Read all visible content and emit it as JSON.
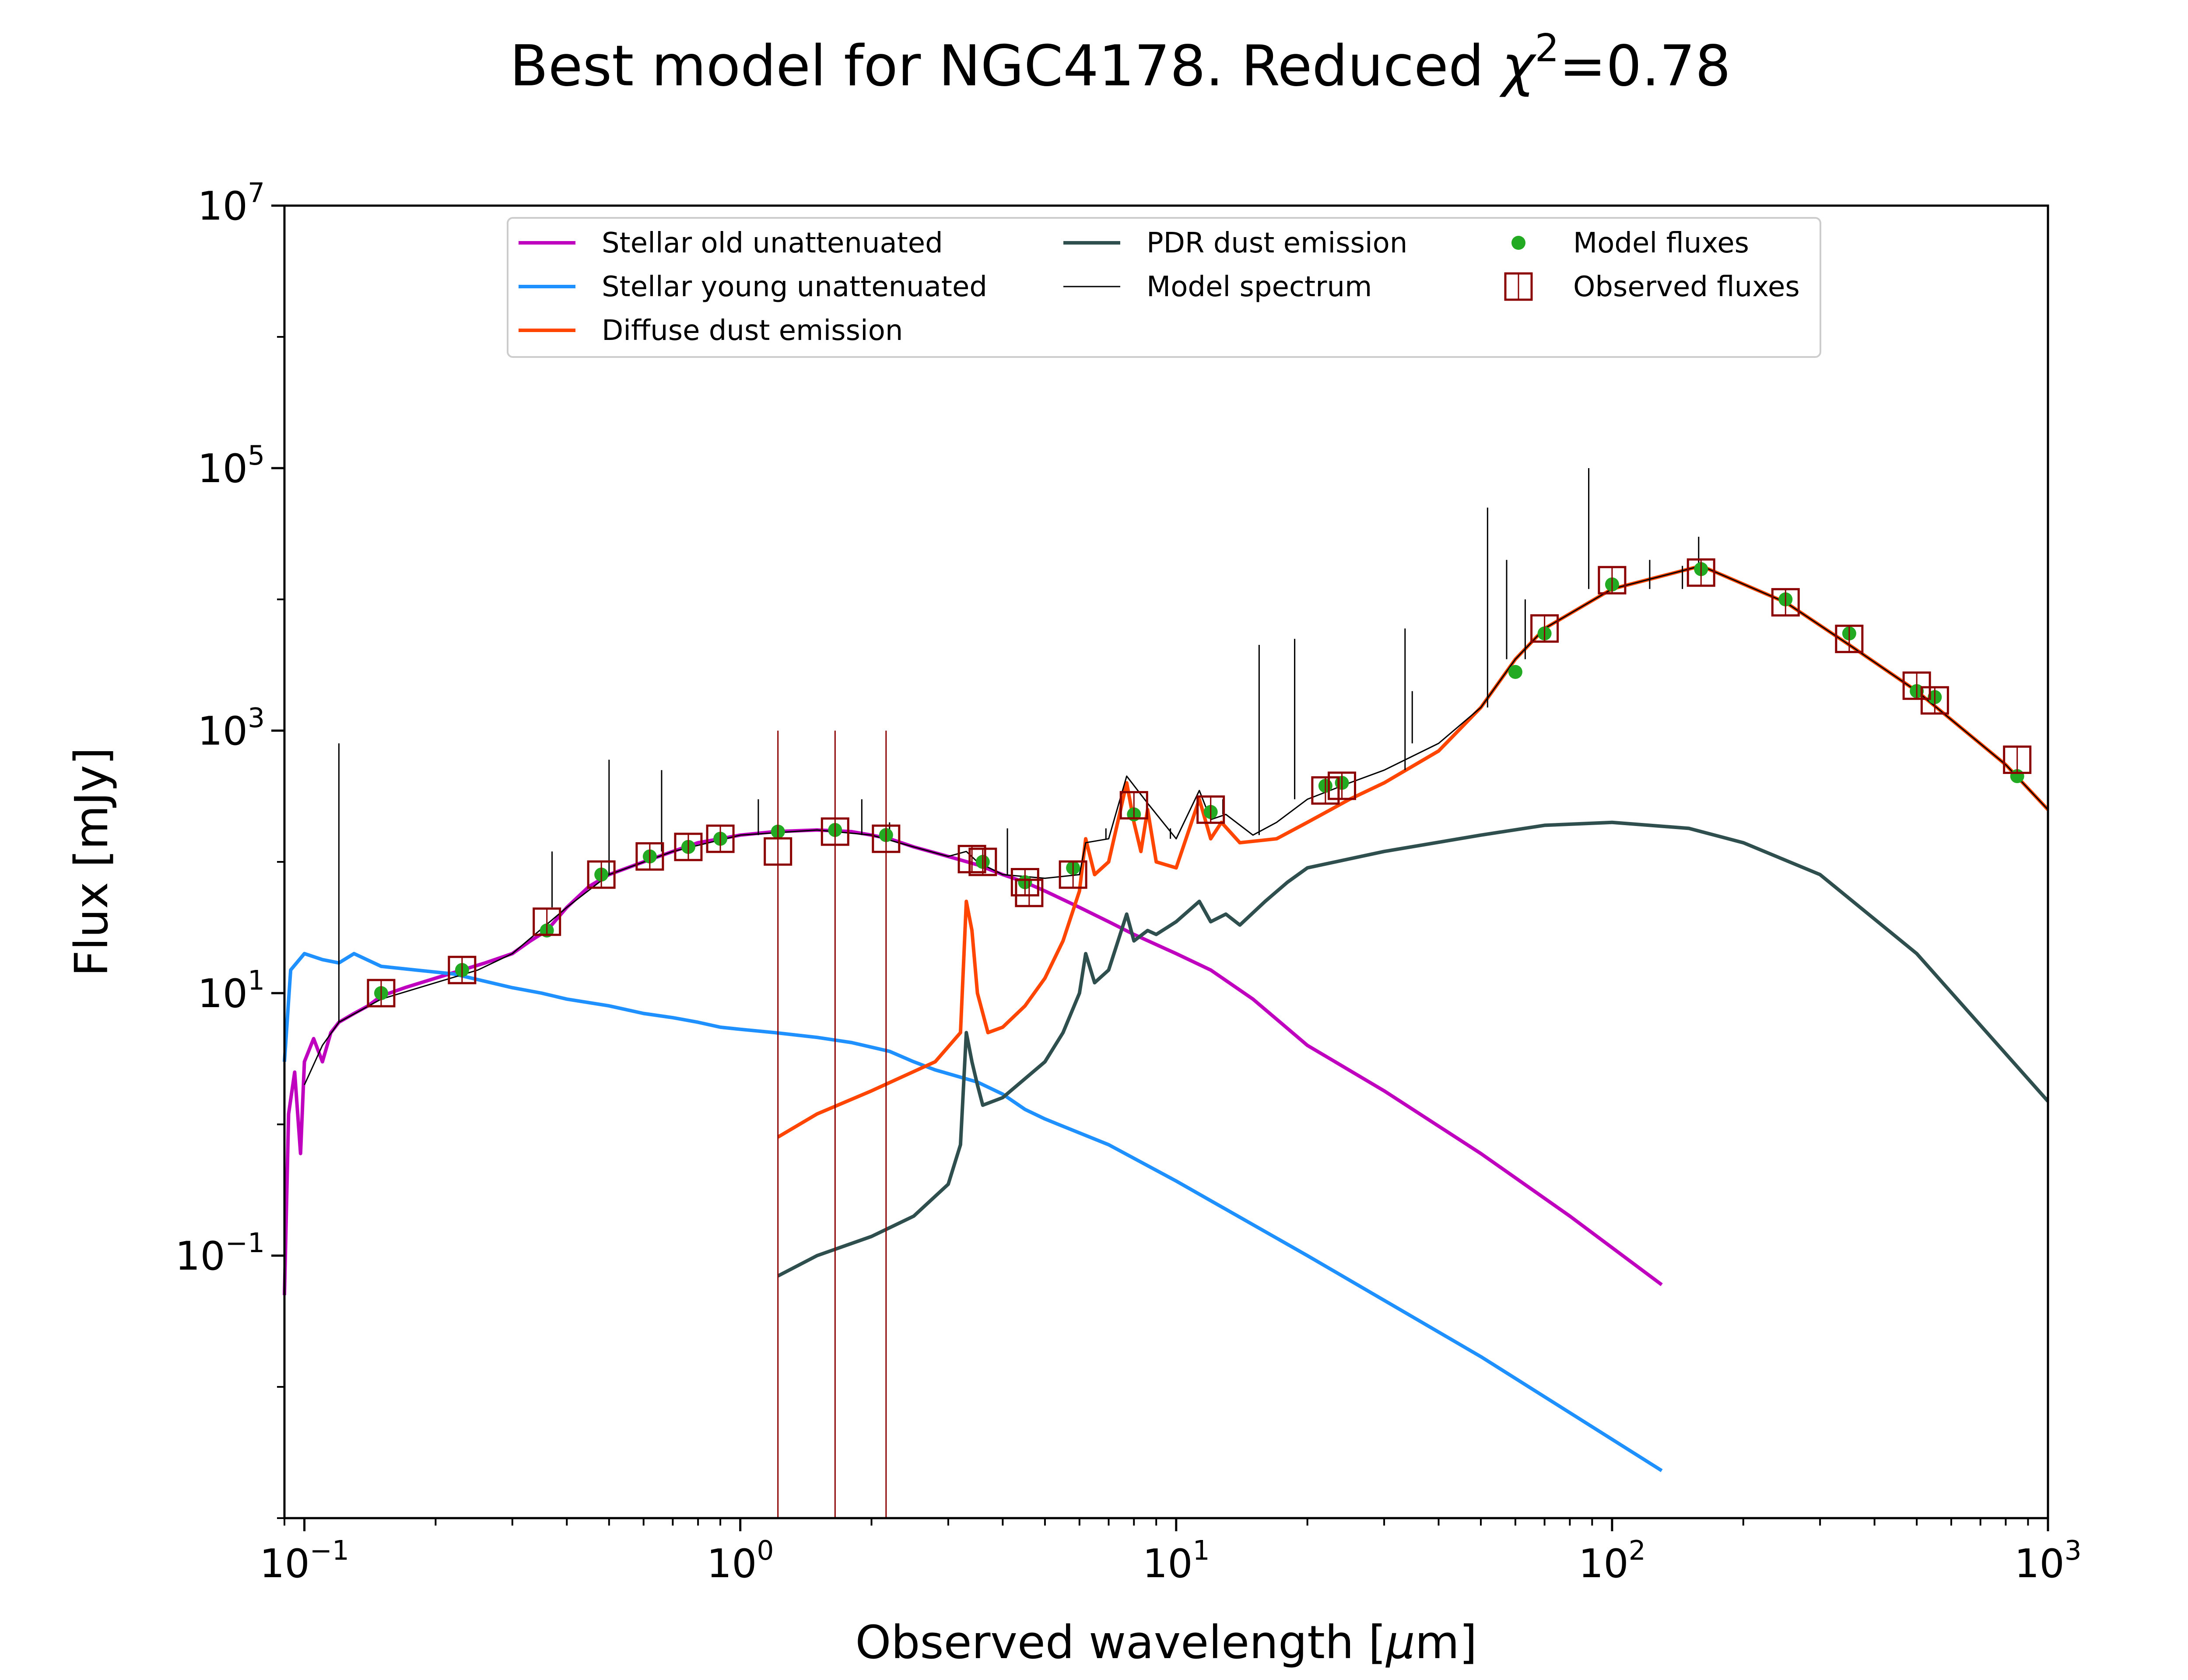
{
  "chart_data": {
    "type": "line",
    "title": {
      "pre": "Best model for NGC4178. Reduced ",
      "chi": "χ",
      "sup": "2",
      "post": "=0.78"
    },
    "xlabel": {
      "pre": "Observed wavelength [",
      "mu": "μ",
      "post": "m]"
    },
    "ylabel": "Flux [mJy]",
    "xscale": "log",
    "yscale": "log",
    "xlim": [
      0.09,
      1000
    ],
    "ylim": [
      0.001,
      10000000
    ],
    "grid": false,
    "legend_position": "top-center",
    "x_ticks": [
      {
        "base": "10",
        "exp": "−1",
        "value": 0.1
      },
      {
        "base": "10",
        "exp": "0",
        "value": 1
      },
      {
        "base": "10",
        "exp": "1",
        "value": 10
      },
      {
        "base": "10",
        "exp": "2",
        "value": 100
      },
      {
        "base": "10",
        "exp": "3",
        "value": 1000
      }
    ],
    "y_ticks": [
      {
        "base": "10",
        "exp": "−1",
        "value": 0.1
      },
      {
        "base": "10",
        "exp": "1",
        "value": 10
      },
      {
        "base": "10",
        "exp": "3",
        "value": 1000
      },
      {
        "base": "10",
        "exp": "5",
        "value": 100000
      },
      {
        "base": "10",
        "exp": "7",
        "value": 10000000
      }
    ],
    "y_minor_ticks": [
      0.001,
      0.01,
      1,
      100,
      10000,
      1000000
    ],
    "series": [
      {
        "name": "Stellar old unattenuated",
        "color": "#bf00bf",
        "kind": "line",
        "points": [
          [
            0.09,
            0.05
          ],
          [
            0.092,
            1.2
          ],
          [
            0.095,
            2.5
          ],
          [
            0.098,
            0.6
          ],
          [
            0.1,
            3
          ],
          [
            0.105,
            4.5
          ],
          [
            0.11,
            3
          ],
          [
            0.115,
            5
          ],
          [
            0.12,
            6
          ],
          [
            0.13,
            7
          ],
          [
            0.14,
            8
          ],
          [
            0.15,
            9.5
          ],
          [
            0.17,
            11
          ],
          [
            0.2,
            13
          ],
          [
            0.23,
            15
          ],
          [
            0.26,
            17
          ],
          [
            0.3,
            20
          ],
          [
            0.33,
            25
          ],
          [
            0.36,
            30
          ],
          [
            0.4,
            45
          ],
          [
            0.45,
            65
          ],
          [
            0.5,
            80
          ],
          [
            0.6,
            100
          ],
          [
            0.7,
            120
          ],
          [
            0.8,
            140
          ],
          [
            0.9,
            150
          ],
          [
            1.0,
            160
          ],
          [
            1.2,
            170
          ],
          [
            1.5,
            175
          ],
          [
            1.8,
            170
          ],
          [
            2.0,
            160
          ],
          [
            2.2,
            150
          ],
          [
            2.5,
            130
          ],
          [
            3.0,
            110
          ],
          [
            3.5,
            95
          ],
          [
            4.0,
            80
          ],
          [
            4.5,
            70
          ],
          [
            5.0,
            60
          ],
          [
            6.0,
            45
          ],
          [
            7.0,
            35
          ],
          [
            8.0,
            28
          ],
          [
            10.0,
            20
          ],
          [
            12.0,
            15
          ],
          [
            15.0,
            9
          ],
          [
            20.0,
            4
          ],
          [
            30.0,
            1.8
          ],
          [
            50.0,
            0.6
          ],
          [
            80.0,
            0.2
          ],
          [
            130.0,
            0.06
          ]
        ]
      },
      {
        "name": "Stellar young unattenuated",
        "color": "#1e90ff",
        "kind": "line",
        "points": [
          [
            0.09,
            3
          ],
          [
            0.093,
            15
          ],
          [
            0.1,
            20
          ],
          [
            0.11,
            18
          ],
          [
            0.12,
            17
          ],
          [
            0.13,
            20
          ],
          [
            0.15,
            16
          ],
          [
            0.18,
            15
          ],
          [
            0.22,
            14
          ],
          [
            0.3,
            11
          ],
          [
            0.35,
            10
          ],
          [
            0.4,
            9
          ],
          [
            0.5,
            8
          ],
          [
            0.6,
            7
          ],
          [
            0.7,
            6.5
          ],
          [
            0.8,
            6
          ],
          [
            0.9,
            5.5
          ],
          [
            1.0,
            5.3
          ],
          [
            1.2,
            5
          ],
          [
            1.5,
            4.6
          ],
          [
            1.8,
            4.2
          ],
          [
            2.2,
            3.6
          ],
          [
            2.5,
            3
          ],
          [
            2.8,
            2.6
          ],
          [
            3.5,
            2.1
          ],
          [
            4.0,
            1.7
          ],
          [
            4.5,
            1.3
          ],
          [
            5.0,
            1.1
          ],
          [
            7.0,
            0.7
          ],
          [
            10.0,
            0.37
          ],
          [
            20.0,
            0.1
          ],
          [
            50.0,
            0.017
          ],
          [
            130.0,
            0.0023
          ]
        ]
      },
      {
        "name": "Diffuse dust emission",
        "color": "#ff4500",
        "kind": "line",
        "points": [
          [
            1.22,
            0.8
          ],
          [
            1.5,
            1.2
          ],
          [
            2.0,
            1.8
          ],
          [
            2.8,
            3
          ],
          [
            3.2,
            5
          ],
          [
            3.3,
            50
          ],
          [
            3.4,
            30
          ],
          [
            3.5,
            10
          ],
          [
            3.7,
            5
          ],
          [
            4.0,
            5.5
          ],
          [
            4.5,
            8
          ],
          [
            5.0,
            13
          ],
          [
            5.5,
            25
          ],
          [
            6.0,
            60
          ],
          [
            6.2,
            150
          ],
          [
            6.5,
            80
          ],
          [
            7.0,
            100
          ],
          [
            7.7,
            400
          ],
          [
            8.0,
            200
          ],
          [
            8.3,
            120
          ],
          [
            8.6,
            250
          ],
          [
            9.0,
            100
          ],
          [
            10.0,
            90
          ],
          [
            11.3,
            300
          ],
          [
            12.0,
            150
          ],
          [
            12.7,
            200
          ],
          [
            14.0,
            140
          ],
          [
            17.0,
            150
          ],
          [
            20.0,
            200
          ],
          [
            25.0,
            300
          ],
          [
            30.0,
            400
          ],
          [
            40.0,
            700
          ],
          [
            50.0,
            1500
          ],
          [
            60.0,
            3500
          ],
          [
            70.0,
            6000
          ],
          [
            100.0,
            12000
          ],
          [
            160.0,
            18000
          ],
          [
            250.0,
            9500
          ],
          [
            350.0,
            4500
          ],
          [
            500.0,
            2000
          ],
          [
            800.0,
            550
          ],
          [
            1000.0,
            250
          ]
        ]
      },
      {
        "name": "PDR dust emission",
        "color": "#2f4f4f",
        "kind": "line",
        "points": [
          [
            1.22,
            0.07
          ],
          [
            1.5,
            0.1
          ],
          [
            2.0,
            0.14
          ],
          [
            2.5,
            0.2
          ],
          [
            3.0,
            0.35
          ],
          [
            3.2,
            0.7
          ],
          [
            3.3,
            5
          ],
          [
            3.4,
            3
          ],
          [
            3.5,
            2
          ],
          [
            3.6,
            1.4
          ],
          [
            4.0,
            1.6
          ],
          [
            5.0,
            3
          ],
          [
            5.5,
            5
          ],
          [
            6.0,
            10
          ],
          [
            6.2,
            20
          ],
          [
            6.5,
            12
          ],
          [
            7.0,
            15
          ],
          [
            7.7,
            40
          ],
          [
            8.0,
            25
          ],
          [
            8.6,
            30
          ],
          [
            9.0,
            28
          ],
          [
            10.0,
            35
          ],
          [
            11.3,
            50
          ],
          [
            12.0,
            35
          ],
          [
            13.0,
            40
          ],
          [
            14.0,
            33
          ],
          [
            16.0,
            50
          ],
          [
            18.0,
            70
          ],
          [
            20.0,
            90
          ],
          [
            30.0,
            120
          ],
          [
            50.0,
            160
          ],
          [
            70.0,
            190
          ],
          [
            100.0,
            200
          ],
          [
            150.0,
            180
          ],
          [
            200.0,
            140
          ],
          [
            300.0,
            80
          ],
          [
            500.0,
            20
          ],
          [
            1000.0,
            1.5
          ]
        ]
      },
      {
        "name": "Model spectrum",
        "color": "#000000",
        "kind": "line",
        "points": [
          [
            0.1,
            2
          ],
          [
            0.11,
            4
          ],
          [
            0.12,
            6
          ],
          [
            0.15,
            9
          ],
          [
            0.2,
            12
          ],
          [
            0.25,
            15
          ],
          [
            0.3,
            20
          ],
          [
            0.4,
            45
          ],
          [
            0.5,
            80
          ],
          [
            0.7,
            120
          ],
          [
            1.0,
            160
          ],
          [
            1.5,
            175
          ],
          [
            2.0,
            160
          ],
          [
            2.5,
            130
          ],
          [
            3.0,
            110
          ],
          [
            3.3,
            120
          ],
          [
            3.5,
            100
          ],
          [
            4.0,
            80
          ],
          [
            5.0,
            75
          ],
          [
            6.0,
            80
          ],
          [
            6.2,
            140
          ],
          [
            7.0,
            150
          ],
          [
            7.7,
            450
          ],
          [
            8.6,
            280
          ],
          [
            10.0,
            150
          ],
          [
            11.3,
            350
          ],
          [
            12.0,
            210
          ],
          [
            13.0,
            230
          ],
          [
            15.0,
            160
          ],
          [
            17.0,
            200
          ],
          [
            20.0,
            300
          ],
          [
            25.0,
            400
          ],
          [
            30.0,
            500
          ],
          [
            40.0,
            800
          ],
          [
            50.0,
            1500
          ],
          [
            60.0,
            3500
          ],
          [
            70.0,
            6000
          ],
          [
            100.0,
            12000
          ],
          [
            160.0,
            18000
          ],
          [
            250.0,
            9500
          ],
          [
            350.0,
            4500
          ],
          [
            500.0,
            2000
          ],
          [
            800.0,
            550
          ],
          [
            1000.0,
            250
          ]
        ],
        "emission_lines": [
          [
            0.12,
            800
          ],
          [
            0.37,
            120
          ],
          [
            0.5,
            600
          ],
          [
            0.66,
            500
          ],
          [
            1.1,
            300
          ],
          [
            1.9,
            300
          ],
          [
            2.2,
            200
          ],
          [
            4.1,
            180
          ],
          [
            6.9,
            180
          ],
          [
            9.7,
            180
          ],
          [
            12.8,
            300
          ],
          [
            15.5,
            4500
          ],
          [
            18.7,
            5000
          ],
          [
            33.5,
            6000
          ],
          [
            34.8,
            2000
          ],
          [
            51.8,
            50000
          ],
          [
            57.3,
            20000
          ],
          [
            63.2,
            10000
          ],
          [
            88.4,
            100000
          ],
          [
            122.0,
            20000
          ],
          [
            145.0,
            12000
          ],
          [
            158.0,
            30000
          ]
        ]
      },
      {
        "name": "Model fluxes",
        "color": "#22aa22",
        "kind": "scatter",
        "points": [
          [
            0.15,
            10
          ],
          [
            0.23,
            15
          ],
          [
            0.36,
            30
          ],
          [
            0.48,
            80
          ],
          [
            0.62,
            110
          ],
          [
            0.76,
            130
          ],
          [
            0.9,
            150
          ],
          [
            1.22,
            170
          ],
          [
            1.65,
            175
          ],
          [
            2.16,
            160
          ],
          [
            3.6,
            100
          ],
          [
            4.5,
            70
          ],
          [
            5.8,
            90
          ],
          [
            8.0,
            230
          ],
          [
            12.0,
            240
          ],
          [
            22.0,
            380
          ],
          [
            24.0,
            400
          ],
          [
            60.0,
            2800
          ],
          [
            70.0,
            5500
          ],
          [
            100.0,
            13000
          ],
          [
            160.0,
            17000
          ],
          [
            250.0,
            10000
          ],
          [
            350.0,
            5500
          ],
          [
            500.0,
            2000
          ],
          [
            550.0,
            1800
          ],
          [
            850.0,
            450
          ]
        ]
      },
      {
        "name": "Observed fluxes",
        "color": "#8b0000",
        "kind": "errorbar",
        "points": [
          [
            0.15,
            10
          ],
          [
            0.23,
            15
          ],
          [
            0.36,
            35
          ],
          [
            0.48,
            80
          ],
          [
            0.62,
            110
          ],
          [
            0.76,
            130
          ],
          [
            0.9,
            150
          ],
          [
            1.22,
            120
          ],
          [
            1.65,
            170
          ],
          [
            2.16,
            150
          ],
          [
            3.4,
            105
          ],
          [
            3.6,
            100
          ],
          [
            4.5,
            70
          ],
          [
            4.6,
            58
          ],
          [
            5.8,
            80
          ],
          [
            8.0,
            270
          ],
          [
            12.0,
            250
          ],
          [
            22.0,
            350
          ],
          [
            24.0,
            380
          ],
          [
            70.0,
            6000
          ],
          [
            100.0,
            14000
          ],
          [
            160.0,
            16000
          ],
          [
            250.0,
            9500
          ],
          [
            350.0,
            5000
          ],
          [
            500.0,
            2200
          ],
          [
            550.0,
            1700
          ],
          [
            850.0,
            600
          ]
        ],
        "large_error": [
          1.22,
          1.65,
          2.16
        ]
      }
    ]
  }
}
